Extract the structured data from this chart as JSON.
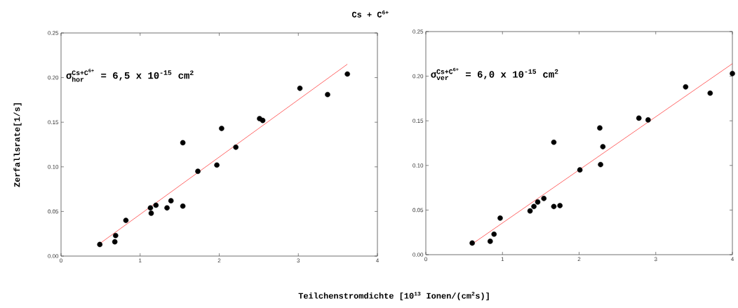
{
  "chart_data": [
    {
      "type": "scatter",
      "title": "Cs + C$^{6+}$",
      "xlabel": "Teilchenstromdichte [10$^{13}$ Ionen/(cm$^{2}$s)]",
      "ylabel": "Zerfallsrate[1/s]",
      "annotations": [
        "\\text{σ}^{\\text{Cs+C}^{\\text{6+}}}_{\\text{hor}}\\text{ = 6,5 x 10}^{\\text{-15}}\\text{ cm}^{\\text{2}}"
      ],
      "xlim": [
        0,
        4
      ],
      "ylim": [
        0,
        0.25
      ],
      "xticks": [
        0,
        1,
        2,
        3,
        4
      ],
      "yticks": [
        {
          "value": 0,
          "label": "0.00"
        },
        0.05,
        {
          "value": 0.1,
          "label": "0.10"
        },
        0.15,
        {
          "value": 0.2,
          "label": "0.20"
        },
        0.25
      ],
      "marker": "circle",
      "series": [
        {
          "color": "#000000",
          "x": [
            0.49,
            0.68,
            0.69,
            0.82,
            1.13,
            1.14,
            1.2,
            1.34,
            1.39,
            1.54,
            1.54,
            1.73,
            1.97,
            2.03,
            2.21,
            2.51,
            2.55,
            3.02,
            3.37,
            3.62
          ],
          "values": [
            0.013,
            0.016,
            0.023,
            0.04,
            0.054,
            0.048,
            0.057,
            0.054,
            0.062,
            0.127,
            0.056,
            0.095,
            0.102,
            0.143,
            0.122,
            0.154,
            0.152,
            0.188,
            0.181,
            0.204
          ]
        },
        {
          "type": "line",
          "marker": "none",
          "color": "#ff0000",
          "x": [
            0.49,
            3.62
          ],
          "values": [
            0.014,
            0.215
          ]
        }
      ]
    },
    {
      "type": "scatter",
      "annotations": [
        "\\text{σ}^{\\text{Cs+C}^{\\text{6+}}}_{\\text{ver}}\\text{ = 6,0 x 10}^{\\text{-15}}\\text{ cm}^{\\text{2}}"
      ],
      "xlim": [
        0,
        4
      ],
      "ylim": [
        0,
        0.25
      ],
      "xticks": [
        0,
        1,
        2,
        3,
        4
      ],
      "yticks": [
        {
          "value": 0,
          "label": "0.00"
        },
        0.05,
        {
          "value": 0.1,
          "label": "0.10"
        },
        0.15,
        {
          "value": 0.2,
          "label": "0.20"
        },
        0.25
      ],
      "marker": "circle",
      "series": [
        {
          "color": "#000000",
          "x": [
            0.605,
            0.84,
            0.89,
            0.97,
            1.36,
            1.41,
            1.46,
            1.54,
            1.67,
            1.67,
            1.75,
            2.01,
            2.27,
            2.28,
            2.31,
            2.78,
            2.9,
            3.39,
            3.71,
            4.0
          ],
          "values": [
            0.013,
            0.015,
            0.023,
            0.041,
            0.049,
            0.054,
            0.059,
            0.063,
            0.126,
            0.054,
            0.055,
            0.095,
            0.142,
            0.101,
            0.121,
            0.153,
            0.151,
            0.188,
            0.181,
            0.203
          ]
        },
        {
          "type": "line",
          "marker": "none",
          "color": "#ff0000",
          "x": [
            0.605,
            4.0
          ],
          "values": [
            0.012,
            0.214
          ]
        }
      ]
    }
  ]
}
